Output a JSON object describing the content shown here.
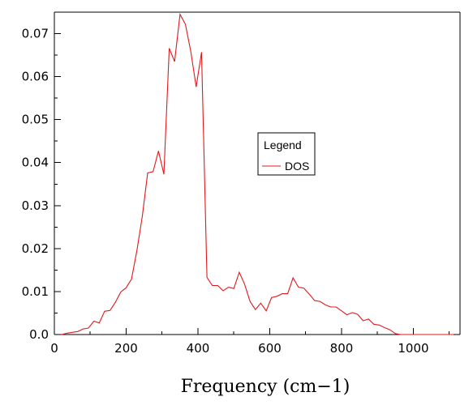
{
  "chart_data": {
    "type": "line",
    "title": "",
    "xlabel": "Frequency (cm−1)",
    "ylabel": "",
    "xlim": [
      0,
      1130
    ],
    "ylim": [
      0,
      0.075
    ],
    "x_ticks": [
      {
        "value": 0,
        "label": "0"
      },
      {
        "value": 200,
        "label": "200"
      },
      {
        "value": 400,
        "label": "400"
      },
      {
        "value": 600,
        "label": "600"
      },
      {
        "value": 800,
        "label": "800"
      },
      {
        "value": 1000,
        "label": "1000"
      }
    ],
    "y_ticks": [
      {
        "value": 0,
        "label": "0.0"
      },
      {
        "value": 0.01,
        "label": "0.01"
      },
      {
        "value": 0.02,
        "label": "0.02"
      },
      {
        "value": 0.03,
        "label": "0.03"
      },
      {
        "value": 0.04,
        "label": "0.04"
      },
      {
        "value": 0.05,
        "label": "0.05"
      },
      {
        "value": 0.06,
        "label": "0.06"
      },
      {
        "value": 0.07,
        "label": "0.07"
      }
    ],
    "grid": false,
    "legend": {
      "title": "Legend",
      "placement": "center-right"
    },
    "series": [
      {
        "name": "DOS",
        "color": "#e0191e",
        "x": [
          20,
          35,
          50,
          65,
          80,
          95,
          110,
          125,
          140,
          155,
          170,
          185,
          200,
          215,
          230,
          245,
          260,
          275,
          290,
          305,
          320,
          335,
          350,
          365,
          380,
          395,
          410,
          425,
          440,
          455,
          470,
          485,
          500,
          515,
          530,
          545,
          560,
          575,
          590,
          605,
          620,
          635,
          650,
          665,
          680,
          695,
          710,
          725,
          740,
          755,
          770,
          785,
          800,
          815,
          830,
          845,
          860,
          875,
          890,
          905,
          920,
          935,
          950,
          965,
          980,
          995,
          1010,
          1025,
          1040,
          1055,
          1070,
          1085,
          1100,
          1112
        ],
        "values": [
          0.0,
          0.0003,
          0.0005,
          0.0007,
          0.0013,
          0.0015,
          0.0031,
          0.0027,
          0.0054,
          0.0056,
          0.0075,
          0.0099,
          0.0109,
          0.0129,
          0.0196,
          0.0275,
          0.0376,
          0.0379,
          0.0427,
          0.0373,
          0.0666,
          0.0635,
          0.0745,
          0.0722,
          0.0659,
          0.0576,
          0.0657,
          0.0133,
          0.0114,
          0.0114,
          0.0102,
          0.011,
          0.0107,
          0.0145,
          0.0117,
          0.0077,
          0.0058,
          0.0073,
          0.0055,
          0.0086,
          0.0089,
          0.0095,
          0.0095,
          0.0132,
          0.011,
          0.0108,
          0.0094,
          0.0079,
          0.0077,
          0.0069,
          0.0064,
          0.0064,
          0.0055,
          0.0046,
          0.0051,
          0.0047,
          0.0032,
          0.0036,
          0.0024,
          0.0022,
          0.0016,
          0.0011,
          0.0002,
          0.0,
          0.0,
          0.0,
          0.0,
          0.0,
          0.0,
          0.0,
          0.0,
          0.0,
          0.0,
          0.0
        ]
      }
    ]
  }
}
